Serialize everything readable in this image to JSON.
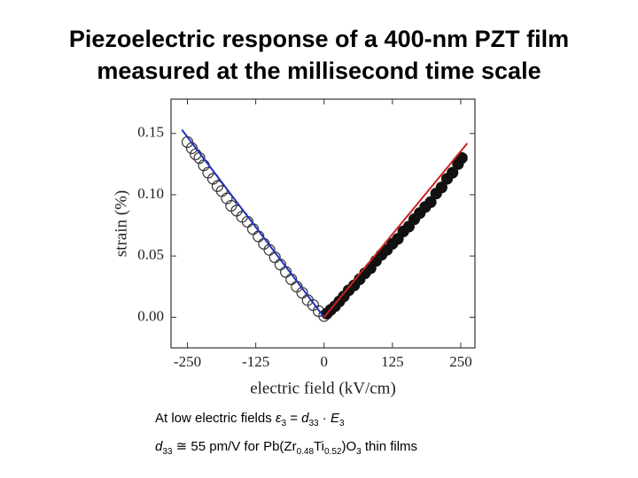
{
  "title": [
    "Piezoelectric response of a 400-nm PZT film",
    "measured at the millisecond time scale"
  ],
  "chart_data": {
    "type": "scatter",
    "x_label": "electric field (kV/cm)",
    "y_label": "strain (%)",
    "xlim": [
      -280,
      276
    ],
    "ylim": [
      -0.025,
      0.178
    ],
    "xticks": [
      -250,
      -125,
      0,
      125,
      250
    ],
    "yticks": [
      {
        "value": 0,
        "label": "0.00"
      },
      0.05,
      {
        "value": 0.1,
        "label": "0.10"
      },
      0.15
    ],
    "series": [
      {
        "marker": "open",
        "color": "#333333",
        "x": [
          -250,
          -242,
          -235,
          -228,
          -220,
          -212,
          -203,
          -195,
          -187,
          -178,
          -170,
          -160,
          -150,
          -140,
          -130,
          -120,
          -110,
          -100,
          -90,
          -80,
          -70,
          -60,
          -50,
          -40,
          -30,
          -20,
          -10,
          0
        ],
        "values": [
          0.143,
          0.138,
          0.133,
          0.13,
          0.124,
          0.118,
          0.113,
          0.107,
          0.103,
          0.097,
          0.091,
          0.087,
          0.082,
          0.078,
          0.072,
          0.066,
          0.06,
          0.055,
          0.049,
          0.043,
          0.037,
          0.031,
          0.025,
          0.02,
          0.014,
          0.01,
          0.005,
          0.001
        ]
      },
      {
        "marker": "filled",
        "color": "#111111",
        "x": [
          5,
          12,
          20,
          28,
          36,
          45,
          55,
          65,
          75,
          85,
          95,
          105,
          115,
          125,
          135,
          145,
          155,
          165,
          175,
          185,
          195,
          205,
          215,
          225,
          235,
          245,
          252
        ],
        "values": [
          0.003,
          0.006,
          0.009,
          0.013,
          0.017,
          0.022,
          0.026,
          0.031,
          0.036,
          0.04,
          0.046,
          0.051,
          0.055,
          0.06,
          0.064,
          0.07,
          0.074,
          0.08,
          0.085,
          0.09,
          0.094,
          0.101,
          0.106,
          0.113,
          0.118,
          0.125,
          0.13
        ]
      }
    ],
    "fit_lines": [
      {
        "color": "#2233bb",
        "x": [
          -260,
          0
        ],
        "values": [
          0.153,
          0
        ]
      },
      {
        "color": "#cc2222",
        "x": [
          0,
          262
        ],
        "values": [
          0,
          0.142
        ]
      }
    ]
  },
  "caption": {
    "line1": [
      "At low electric fields ",
      "ε",
      "3",
      " = ",
      "d",
      "33",
      " · ",
      "E",
      "3"
    ],
    "line2": [
      "d",
      "33",
      " ≅ 55 pm/V for Pb(Zr",
      "0.48",
      "Ti",
      "0.52",
      ")O",
      "3",
      " thin films"
    ]
  }
}
